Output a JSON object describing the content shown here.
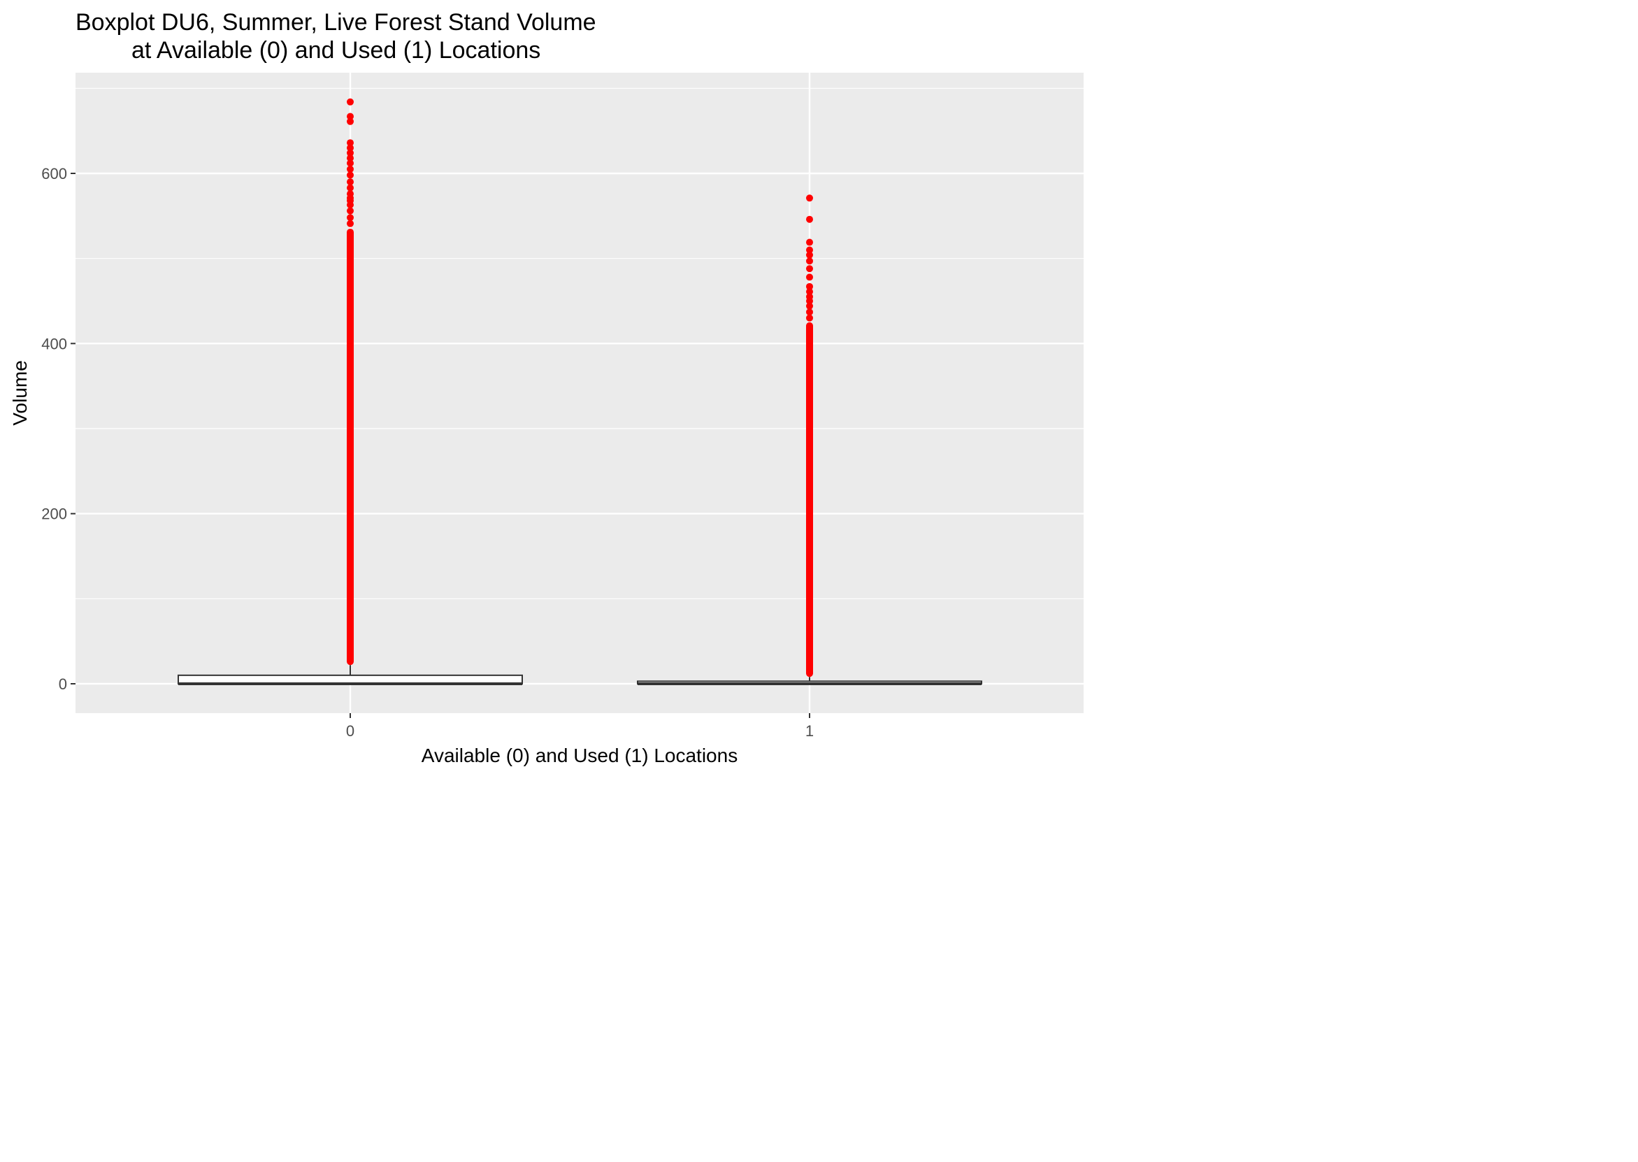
{
  "chart_data": {
    "type": "boxplot",
    "title_line1": "Boxplot DU6, Summer, Live Forest Stand Volume",
    "title_line2": "at Available (0) and Used (1) Locations",
    "xlabel": "Available (0) and Used (1) Locations",
    "ylabel": "Volume",
    "categories": [
      "0",
      "1"
    ],
    "ylim": [
      -35,
      712
    ],
    "y_ticks": [
      0,
      200,
      400,
      600
    ],
    "y_tick_labels": [
      "0",
      "200",
      "400",
      "600"
    ],
    "grid": true,
    "outlier_color": "#ff0000",
    "panel_color": "#ebebeb",
    "boxes": [
      {
        "category": "0",
        "min": 0,
        "q1": 0,
        "median": 0,
        "q3": 10,
        "whisker_high": 22,
        "outlier_range": [
          22,
          535
        ],
        "outliers": [
          541,
          548,
          556,
          563,
          568,
          571,
          576,
          583,
          590,
          598,
          605,
          612,
          618,
          624,
          630,
          636,
          661,
          667,
          684
        ]
      },
      {
        "category": "1",
        "min": 0,
        "q1": 0,
        "median": 0,
        "q3": 3,
        "whisker_high": 8,
        "outlier_range": [
          8,
          425
        ],
        "outliers": [
          430,
          437,
          444,
          450,
          455,
          461,
          467,
          478,
          488,
          497,
          504,
          510,
          519,
          546,
          571
        ]
      }
    ]
  }
}
